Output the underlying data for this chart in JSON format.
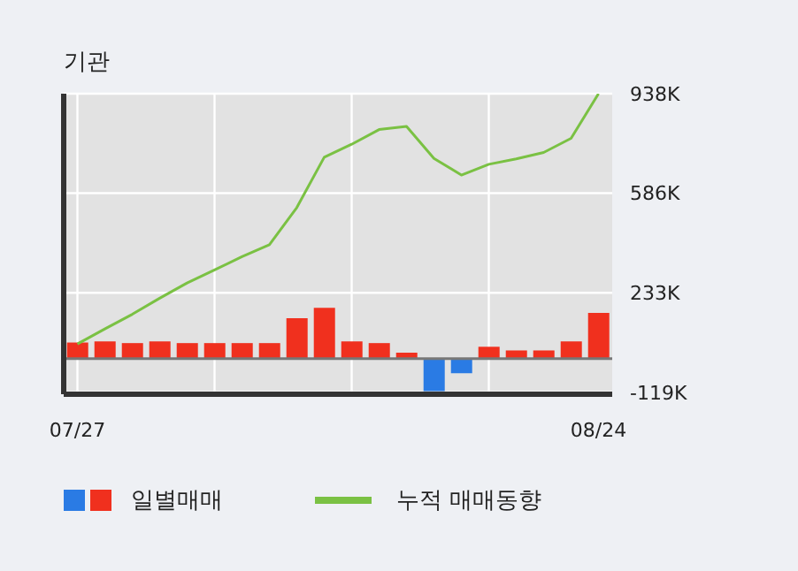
{
  "chart_data": {
    "type": "bar",
    "title": "기관",
    "categories": [
      "07/27",
      null,
      null,
      null,
      null,
      null,
      null,
      null,
      null,
      null,
      null,
      null,
      null,
      null,
      null,
      null,
      null,
      null,
      null,
      "08/24"
    ],
    "series": [
      {
        "name": "일별매매",
        "color": "#f0301e",
        "colors": [
          "#f0301e",
          "#f0301e",
          "#f0301e",
          "#f0301e",
          "#f0301e",
          "#f0301e",
          "#f0301e",
          "#f0301e",
          "#f0301e",
          "#f0301e",
          "#f0301e",
          "#f0301e",
          "#f0301e",
          "#2a7be4",
          "#2a7be4",
          "#f0301e",
          "#f0301e",
          "#f0301e",
          "#f0301e",
          "#f0301e"
        ],
        "values": [
          57,
          61,
          55,
          61,
          55,
          55,
          55,
          55,
          143,
          180,
          61,
          55,
          21,
          -115,
          -52,
          42,
          29,
          29,
          61,
          162
        ]
      },
      {
        "name": "누적 매매동향",
        "type": "line",
        "color": "#7ac143",
        "values": [
          52,
          105,
          157,
          214,
          268,
          314,
          361,
          403,
          535,
          713,
          759,
          811,
          822,
          709,
          650,
          688,
          707,
          730,
          780,
          938
        ]
      }
    ],
    "ylim": [
      -126,
      938
    ],
    "yticks": [
      {
        "value": -119,
        "label": "-119K"
      },
      {
        "value": 233,
        "label": "233K"
      },
      {
        "value": 586,
        "label": "586K"
      },
      {
        "value": 938,
        "label": "938K"
      }
    ],
    "grid": true,
    "legend": "bottom",
    "marker": "none"
  }
}
